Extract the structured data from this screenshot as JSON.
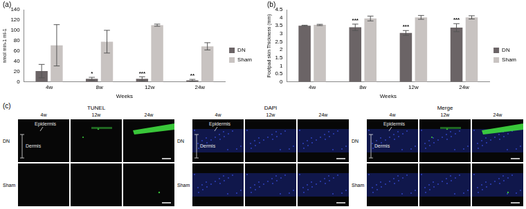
{
  "chart_data": [
    {
      "letter": "(a)",
      "type": "bar",
      "categories": [
        "4w",
        "8w",
        "12w",
        "24w"
      ],
      "x_label": "Weeks",
      "y_label": "nmol min-1 ml-1",
      "ylim": [
        0,
        140
      ],
      "yticks": [
        0,
        20,
        40,
        60,
        80,
        100,
        120,
        140
      ],
      "grid": false,
      "legend": "right",
      "series": [
        {
          "name": "DN",
          "color": "#6b6466",
          "values": [
            21,
            6,
            6,
            3
          ],
          "errors": [
            13,
            3,
            4,
            2
          ]
        },
        {
          "name": "Sham",
          "color": "#c8c3c1",
          "values": [
            71,
            78,
            110,
            69
          ],
          "errors": [
            40,
            22,
            2,
            7
          ]
        }
      ],
      "annotations": [
        {
          "category": "8w",
          "series": "DN",
          "text": "*"
        },
        {
          "category": "12w",
          "series": "DN",
          "text": "***"
        },
        {
          "category": "24w",
          "series": "DN",
          "text": "**"
        }
      ]
    },
    {
      "letter": "(b)",
      "type": "bar",
      "categories": [
        "4w",
        "8w",
        "12w",
        "24w"
      ],
      "x_label": "Weeks",
      "y_label": "Footpad skin Thickness (mm)",
      "ylim": [
        0,
        4.5
      ],
      "yticks": [
        0,
        0.5,
        1,
        1.5,
        2,
        2.5,
        3,
        3.5,
        4,
        4.5
      ],
      "grid": false,
      "legend": "right",
      "series": [
        {
          "name": "DN",
          "color": "#6b6466",
          "values": [
            3.5,
            3.4,
            3.05,
            3.38
          ],
          "errors": [
            0.03,
            0.2,
            0.15,
            0.25
          ]
        },
        {
          "name": "Sham",
          "color": "#c8c3c1",
          "values": [
            3.55,
            3.95,
            4.02,
            4.02
          ],
          "errors": [
            0.04,
            0.15,
            0.12,
            0.1
          ]
        }
      ],
      "annotations": [
        {
          "category": "8w",
          "series": "DN",
          "text": "***"
        },
        {
          "category": "12w",
          "series": "DN",
          "text": "***"
        },
        {
          "category": "24w",
          "series": "DN",
          "text": "***"
        }
      ]
    }
  ],
  "image_panel": {
    "letter": "(c)",
    "panels": [
      "TUNEL",
      "DAPI",
      "Merge"
    ],
    "columns": [
      "4w",
      "12w",
      "24w"
    ],
    "rows": [
      "DN",
      "Sham"
    ],
    "epidermis_label": "Epidermis",
    "dermis_label": "Dermis"
  }
}
